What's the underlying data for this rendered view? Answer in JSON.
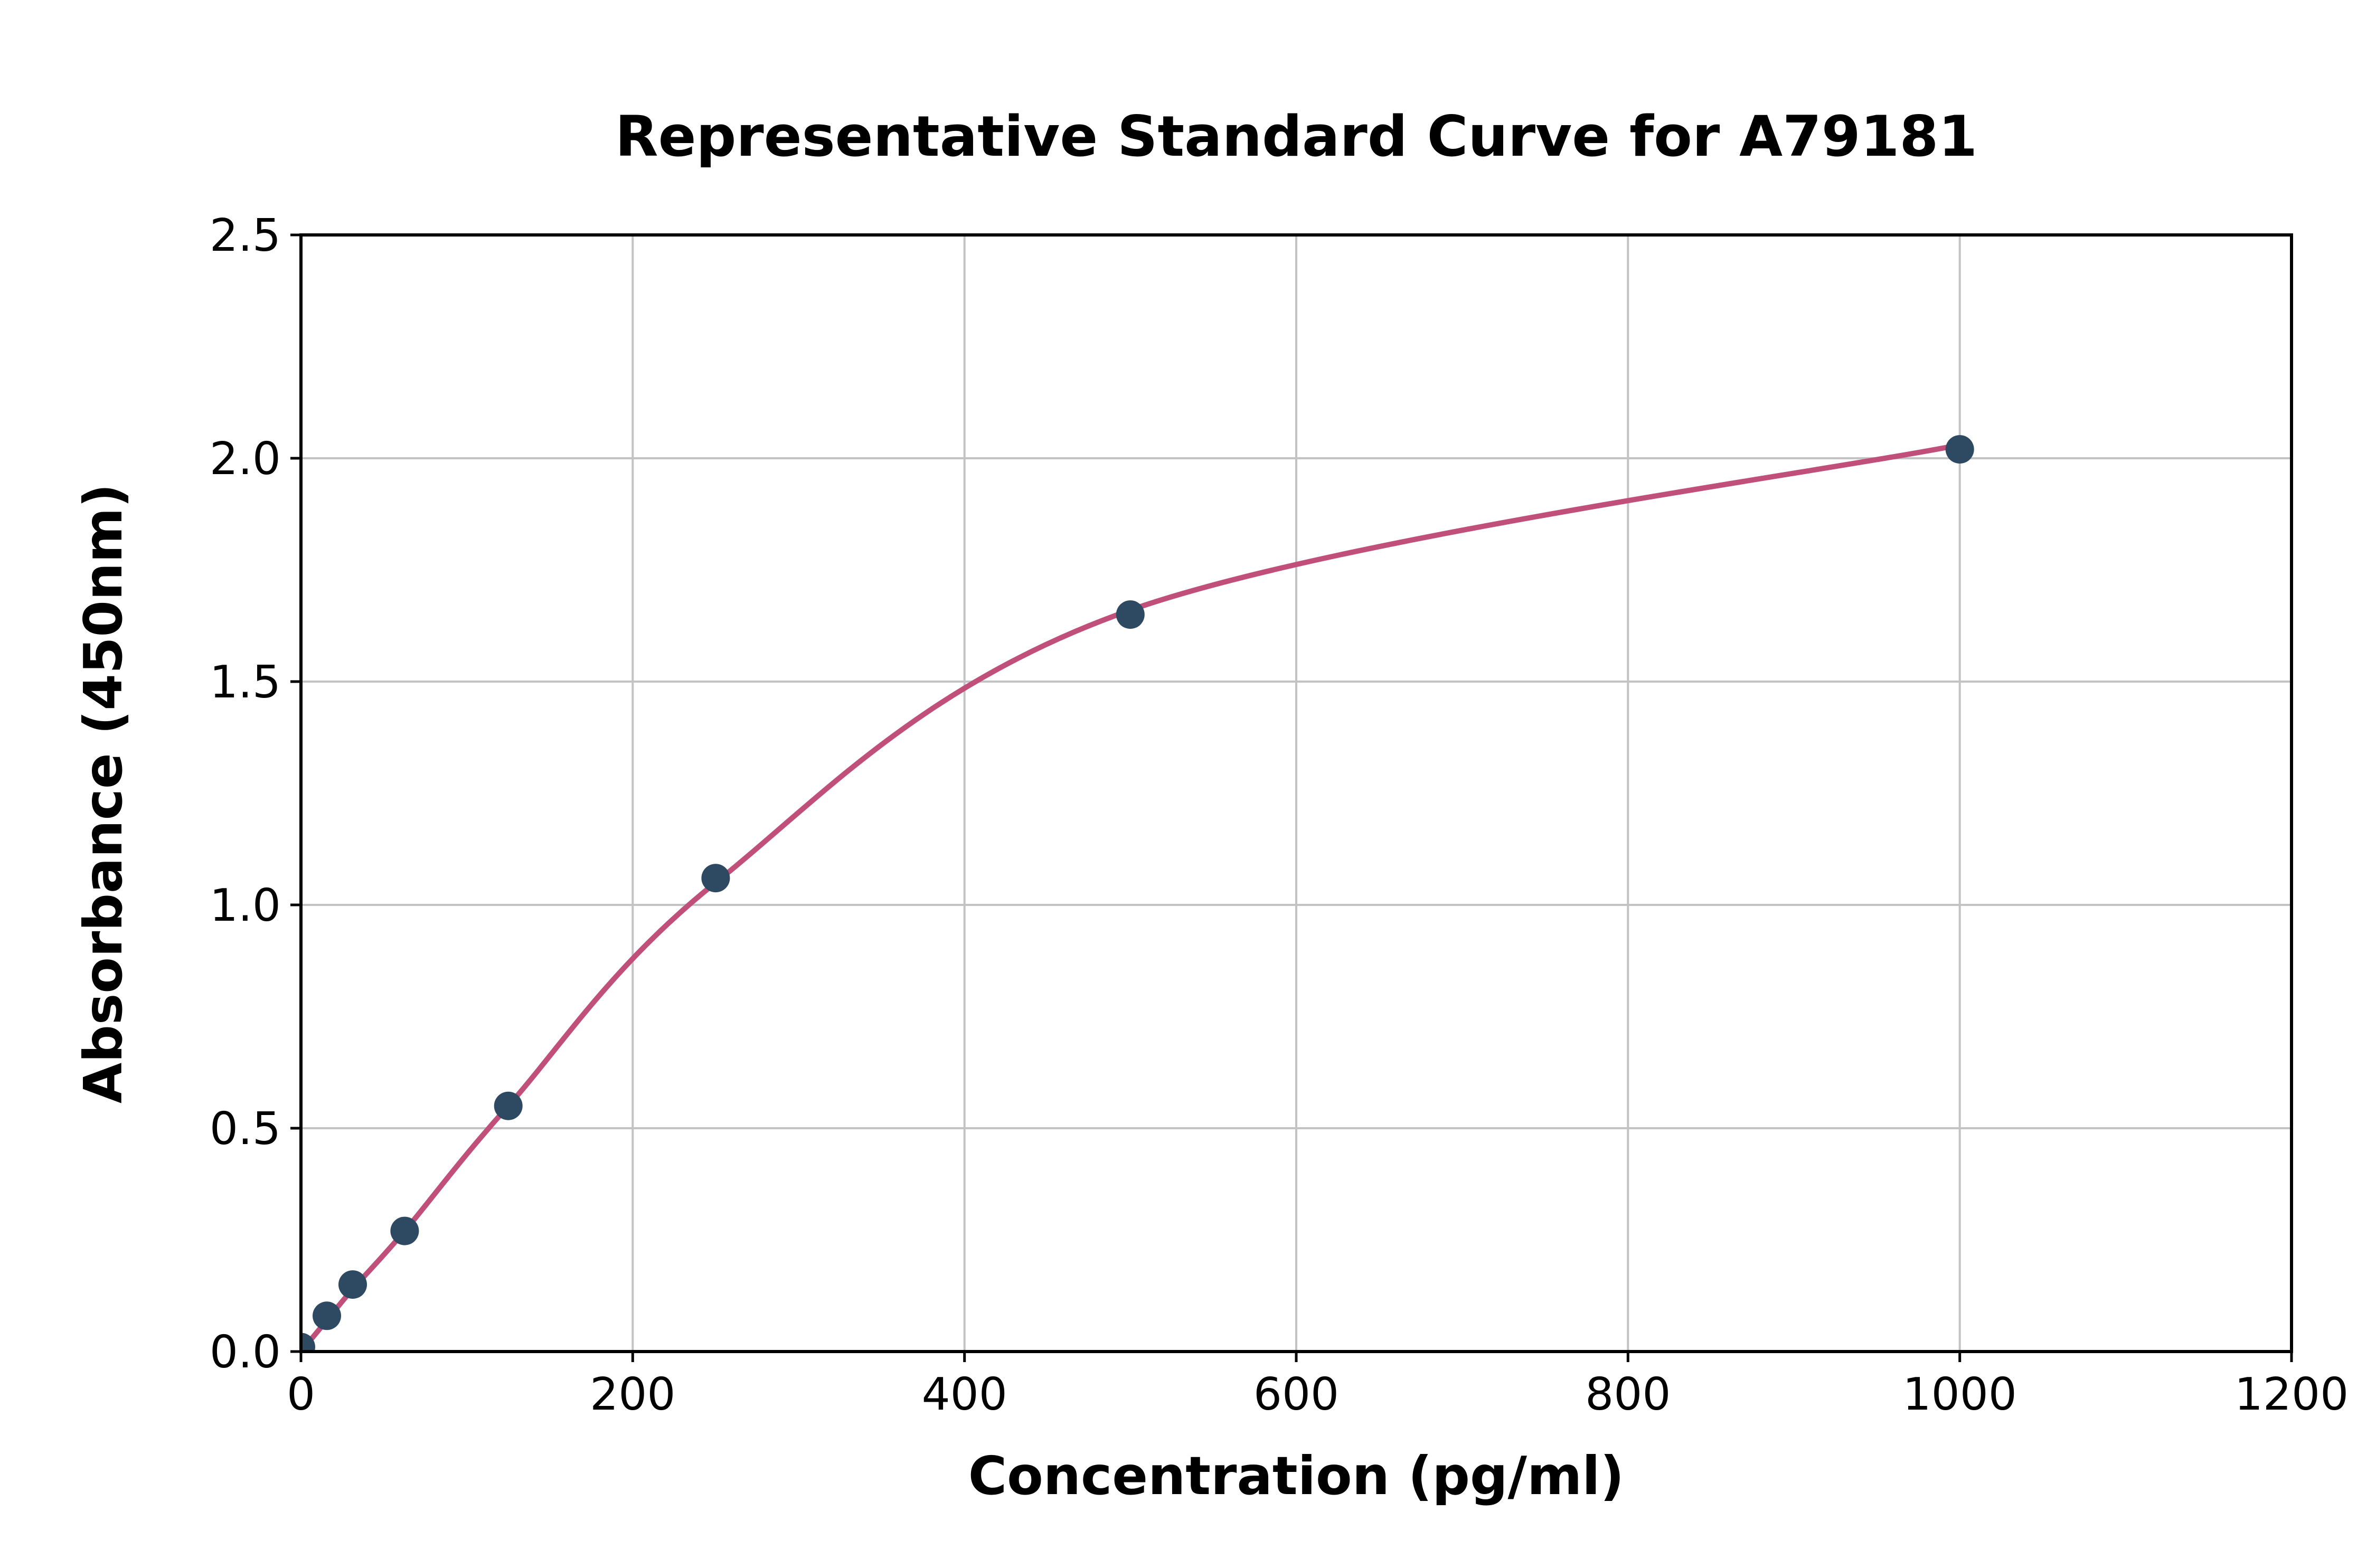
{
  "chart_data": {
    "type": "scatter",
    "title": "Representative Standard Curve for A79181",
    "xlabel": "Concentration (pg/ml)",
    "ylabel": "Absorbance (450nm)",
    "xlim": [
      0,
      1200
    ],
    "ylim": [
      0,
      2.5
    ],
    "xticks": [
      0,
      200,
      400,
      600,
      800,
      1000,
      1200
    ],
    "xtick_labels": [
      "0",
      "200",
      "400",
      "600",
      "800",
      "1000",
      "1200"
    ],
    "yticks": [
      0,
      0.5,
      1,
      1.5,
      2,
      2.5
    ],
    "ytick_labels": [
      "0.0",
      "0.5",
      "1.0",
      "1.5",
      "2.0",
      "2.5"
    ],
    "grid": true,
    "legend": "none",
    "series": [
      {
        "name": "Standard data points",
        "type": "scatter",
        "x": [
          0,
          15.6,
          31.2,
          62.5,
          125,
          250,
          500,
          1000
        ],
        "y": [
          0.01,
          0.08,
          0.15,
          0.27,
          0.55,
          1.06,
          1.65,
          2.02
        ]
      },
      {
        "name": "Fitted standard curve",
        "type": "line",
        "x": [
          0,
          15.6,
          31.2,
          62.5,
          125,
          250,
          500,
          1000
        ],
        "y": [
          0.0,
          0.07,
          0.14,
          0.27,
          0.55,
          1.05,
          1.66,
          2.03
        ]
      }
    ],
    "colors": {
      "marker": "#2e4a62",
      "curve": "#c0507a",
      "grid": "#c3c3c3",
      "axis": "#000000",
      "text": "#000000",
      "background": "#ffffff"
    }
  }
}
